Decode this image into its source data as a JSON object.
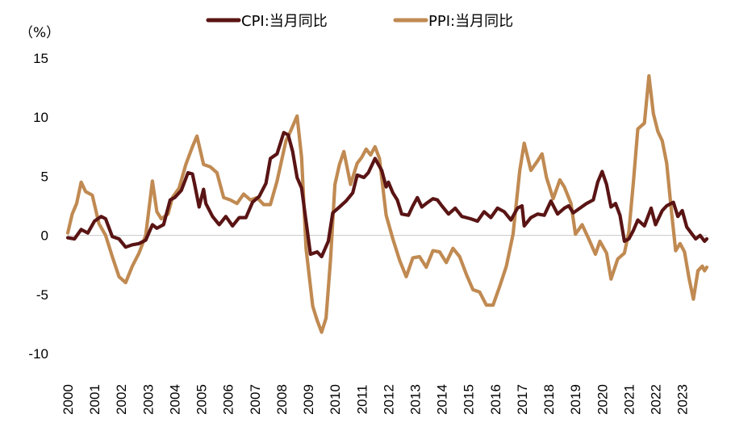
{
  "chart_data": {
    "type": "line",
    "unit_label": "（%）",
    "ylim": [
      -10,
      15
    ],
    "yticks": [
      15,
      10,
      5,
      0,
      -5,
      -10
    ],
    "xticks": [
      "2000",
      "2001",
      "2002",
      "2003",
      "2004",
      "2005",
      "2006",
      "2007",
      "2008",
      "2009",
      "2010",
      "2011",
      "2012",
      "2013",
      "2014",
      "2015",
      "2016",
      "2017",
      "2018",
      "2019",
      "2020",
      "2021",
      "2022",
      "2023"
    ],
    "x_start": "2000-01",
    "legend_position": "top-center",
    "grid": false,
    "series": [
      {
        "name": "CPI:当月同比",
        "color": "#5a1414",
        "points": [
          [
            "2000-01",
            -0.2
          ],
          [
            "2000-04",
            -0.3
          ],
          [
            "2000-07",
            0.5
          ],
          [
            "2000-10",
            0.2
          ],
          [
            "2001-01",
            1.2
          ],
          [
            "2001-04",
            1.6
          ],
          [
            "2001-06",
            1.4
          ],
          [
            "2001-09",
            -0.1
          ],
          [
            "2001-12",
            -0.3
          ],
          [
            "2002-03",
            -1.0
          ],
          [
            "2002-06",
            -0.8
          ],
          [
            "2002-09",
            -0.7
          ],
          [
            "2002-12",
            -0.4
          ],
          [
            "2003-03",
            0.9
          ],
          [
            "2003-05",
            0.6
          ],
          [
            "2003-08",
            0.9
          ],
          [
            "2003-11",
            3.0
          ],
          [
            "2004-01",
            3.2
          ],
          [
            "2004-04",
            3.8
          ],
          [
            "2004-07",
            5.3
          ],
          [
            "2004-09",
            5.2
          ],
          [
            "2004-10",
            4.3
          ],
          [
            "2004-12",
            2.4
          ],
          [
            "2005-02",
            3.9
          ],
          [
            "2005-03",
            2.7
          ],
          [
            "2005-06",
            1.6
          ],
          [
            "2005-09",
            0.9
          ],
          [
            "2005-12",
            1.6
          ],
          [
            "2006-03",
            0.8
          ],
          [
            "2006-06",
            1.5
          ],
          [
            "2006-09",
            1.5
          ],
          [
            "2006-12",
            2.8
          ],
          [
            "2007-03",
            3.3
          ],
          [
            "2007-06",
            4.4
          ],
          [
            "2007-08",
            6.5
          ],
          [
            "2007-11",
            6.9
          ],
          [
            "2008-02",
            8.7
          ],
          [
            "2008-04",
            8.5
          ],
          [
            "2008-06",
            7.1
          ],
          [
            "2008-08",
            4.9
          ],
          [
            "2008-10",
            4.0
          ],
          [
            "2008-12",
            1.2
          ],
          [
            "2009-02",
            -1.6
          ],
          [
            "2009-05",
            -1.4
          ],
          [
            "2009-07",
            -1.8
          ],
          [
            "2009-10",
            -0.5
          ],
          [
            "2009-12",
            1.9
          ],
          [
            "2010-03",
            2.4
          ],
          [
            "2010-06",
            2.9
          ],
          [
            "2010-09",
            3.6
          ],
          [
            "2010-11",
            5.1
          ],
          [
            "2011-02",
            4.9
          ],
          [
            "2011-04",
            5.3
          ],
          [
            "2011-07",
            6.5
          ],
          [
            "2011-10",
            5.5
          ],
          [
            "2011-12",
            4.1
          ],
          [
            "2012-01",
            4.5
          ],
          [
            "2012-03",
            3.6
          ],
          [
            "2012-05",
            3.0
          ],
          [
            "2012-07",
            1.8
          ],
          [
            "2012-10",
            1.7
          ],
          [
            "2012-12",
            2.5
          ],
          [
            "2013-02",
            3.2
          ],
          [
            "2013-04",
            2.4
          ],
          [
            "2013-06",
            2.7
          ],
          [
            "2013-09",
            3.1
          ],
          [
            "2013-11",
            3.0
          ],
          [
            "2014-01",
            2.5
          ],
          [
            "2014-04",
            1.8
          ],
          [
            "2014-07",
            2.3
          ],
          [
            "2014-10",
            1.6
          ],
          [
            "2014-12",
            1.5
          ],
          [
            "2015-02",
            1.4
          ],
          [
            "2015-05",
            1.2
          ],
          [
            "2015-08",
            2.0
          ],
          [
            "2015-11",
            1.5
          ],
          [
            "2016-02",
            2.3
          ],
          [
            "2016-05",
            2.0
          ],
          [
            "2016-08",
            1.3
          ],
          [
            "2016-11",
            2.3
          ],
          [
            "2017-01",
            2.5
          ],
          [
            "2017-02",
            0.8
          ],
          [
            "2017-05",
            1.5
          ],
          [
            "2017-08",
            1.8
          ],
          [
            "2017-11",
            1.7
          ],
          [
            "2018-02",
            2.9
          ],
          [
            "2018-05",
            1.8
          ],
          [
            "2018-08",
            2.3
          ],
          [
            "2018-10",
            2.5
          ],
          [
            "2018-12",
            1.9
          ],
          [
            "2019-03",
            2.3
          ],
          [
            "2019-06",
            2.7
          ],
          [
            "2019-09",
            3.0
          ],
          [
            "2019-11",
            4.5
          ],
          [
            "2020-01",
            5.4
          ],
          [
            "2020-03",
            4.3
          ],
          [
            "2020-05",
            2.4
          ],
          [
            "2020-07",
            2.7
          ],
          [
            "2020-09",
            1.7
          ],
          [
            "2020-11",
            -0.5
          ],
          [
            "2021-01",
            -0.3
          ],
          [
            "2021-03",
            0.4
          ],
          [
            "2021-05",
            1.3
          ],
          [
            "2021-08",
            0.8
          ],
          [
            "2021-11",
            2.3
          ],
          [
            "2022-01",
            0.9
          ],
          [
            "2022-04",
            2.1
          ],
          [
            "2022-06",
            2.5
          ],
          [
            "2022-09",
            2.8
          ],
          [
            "2022-11",
            1.6
          ],
          [
            "2023-01",
            2.1
          ],
          [
            "2023-03",
            0.7
          ],
          [
            "2023-05",
            0.2
          ],
          [
            "2023-07",
            -0.3
          ],
          [
            "2023-09",
            0.0
          ],
          [
            "2023-11",
            -0.5
          ],
          [
            "2023-12",
            -0.3
          ]
        ]
      },
      {
        "name": "PPI:当月同比",
        "color": "#c08a52",
        "points": [
          [
            "2000-01",
            0.2
          ],
          [
            "2000-03",
            1.8
          ],
          [
            "2000-05",
            2.7
          ],
          [
            "2000-07",
            4.5
          ],
          [
            "2000-09",
            3.7
          ],
          [
            "2000-12",
            3.4
          ],
          [
            "2001-03",
            1.0
          ],
          [
            "2001-06",
            0.0
          ],
          [
            "2001-09",
            -1.8
          ],
          [
            "2001-12",
            -3.5
          ],
          [
            "2002-03",
            -4.0
          ],
          [
            "2002-06",
            -2.6
          ],
          [
            "2002-09",
            -1.5
          ],
          [
            "2002-12",
            0.0
          ],
          [
            "2003-03",
            4.6
          ],
          [
            "2003-05",
            2.0
          ],
          [
            "2003-07",
            1.4
          ],
          [
            "2003-10",
            1.8
          ],
          [
            "2003-12",
            3.2
          ],
          [
            "2004-03",
            4.0
          ],
          [
            "2004-06",
            6.0
          ],
          [
            "2004-09",
            7.5
          ],
          [
            "2004-11",
            8.4
          ],
          [
            "2005-02",
            6.0
          ],
          [
            "2005-05",
            5.8
          ],
          [
            "2005-08",
            5.3
          ],
          [
            "2005-11",
            3.2
          ],
          [
            "2006-02",
            3.0
          ],
          [
            "2006-05",
            2.7
          ],
          [
            "2006-08",
            3.5
          ],
          [
            "2006-11",
            3.0
          ],
          [
            "2007-02",
            3.2
          ],
          [
            "2007-05",
            2.6
          ],
          [
            "2007-08",
            2.6
          ],
          [
            "2007-11",
            4.6
          ],
          [
            "2008-03",
            8.0
          ],
          [
            "2008-05",
            8.8
          ],
          [
            "2008-08",
            10.1
          ],
          [
            "2008-10",
            6.6
          ],
          [
            "2008-12",
            -1.1
          ],
          [
            "2009-03",
            -6.0
          ],
          [
            "2009-05",
            -7.2
          ],
          [
            "2009-07",
            -8.2
          ],
          [
            "2009-09",
            -7.0
          ],
          [
            "2009-11",
            -2.1
          ],
          [
            "2010-01",
            4.3
          ],
          [
            "2010-03",
            6.0
          ],
          [
            "2010-05",
            7.1
          ],
          [
            "2010-08",
            4.3
          ],
          [
            "2010-11",
            6.1
          ],
          [
            "2011-01",
            6.6
          ],
          [
            "2011-03",
            7.3
          ],
          [
            "2011-05",
            6.8
          ],
          [
            "2011-07",
            7.5
          ],
          [
            "2011-09",
            6.5
          ],
          [
            "2011-12",
            1.7
          ],
          [
            "2012-03",
            -0.3
          ],
          [
            "2012-06",
            -2.1
          ],
          [
            "2012-09",
            -3.5
          ],
          [
            "2012-12",
            -1.9
          ],
          [
            "2013-03",
            -1.8
          ],
          [
            "2013-06",
            -2.7
          ],
          [
            "2013-09",
            -1.3
          ],
          [
            "2013-12",
            -1.4
          ],
          [
            "2014-03",
            -2.3
          ],
          [
            "2014-06",
            -1.1
          ],
          [
            "2014-09",
            -1.8
          ],
          [
            "2014-12",
            -3.3
          ],
          [
            "2015-03",
            -4.6
          ],
          [
            "2015-06",
            -4.8
          ],
          [
            "2015-09",
            -5.9
          ],
          [
            "2015-12",
            -5.9
          ],
          [
            "2016-03",
            -4.3
          ],
          [
            "2016-06",
            -2.6
          ],
          [
            "2016-09",
            0.1
          ],
          [
            "2016-12",
            5.5
          ],
          [
            "2017-02",
            7.8
          ],
          [
            "2017-05",
            5.5
          ],
          [
            "2017-08",
            6.3
          ],
          [
            "2017-10",
            6.9
          ],
          [
            "2017-12",
            4.9
          ],
          [
            "2018-03",
            3.1
          ],
          [
            "2018-06",
            4.7
          ],
          [
            "2018-08",
            4.1
          ],
          [
            "2018-11",
            2.7
          ],
          [
            "2019-01",
            0.1
          ],
          [
            "2019-04",
            0.9
          ],
          [
            "2019-07",
            -0.3
          ],
          [
            "2019-10",
            -1.6
          ],
          [
            "2019-12",
            -0.5
          ],
          [
            "2020-03",
            -1.5
          ],
          [
            "2020-05",
            -3.7
          ],
          [
            "2020-08",
            -2.0
          ],
          [
            "2020-11",
            -1.5
          ],
          [
            "2021-01",
            0.3
          ],
          [
            "2021-03",
            4.4
          ],
          [
            "2021-05",
            9.0
          ],
          [
            "2021-08",
            9.5
          ],
          [
            "2021-10",
            13.5
          ],
          [
            "2021-12",
            10.3
          ],
          [
            "2022-02",
            8.8
          ],
          [
            "2022-04",
            8.0
          ],
          [
            "2022-06",
            6.1
          ],
          [
            "2022-08",
            2.3
          ],
          [
            "2022-10",
            -1.3
          ],
          [
            "2022-12",
            -0.7
          ],
          [
            "2023-02",
            -1.4
          ],
          [
            "2023-04",
            -3.6
          ],
          [
            "2023-06",
            -5.4
          ],
          [
            "2023-08",
            -3.0
          ],
          [
            "2023-10",
            -2.6
          ],
          [
            "2023-11",
            -3.0
          ],
          [
            "2023-12",
            -2.7
          ]
        ]
      }
    ]
  }
}
